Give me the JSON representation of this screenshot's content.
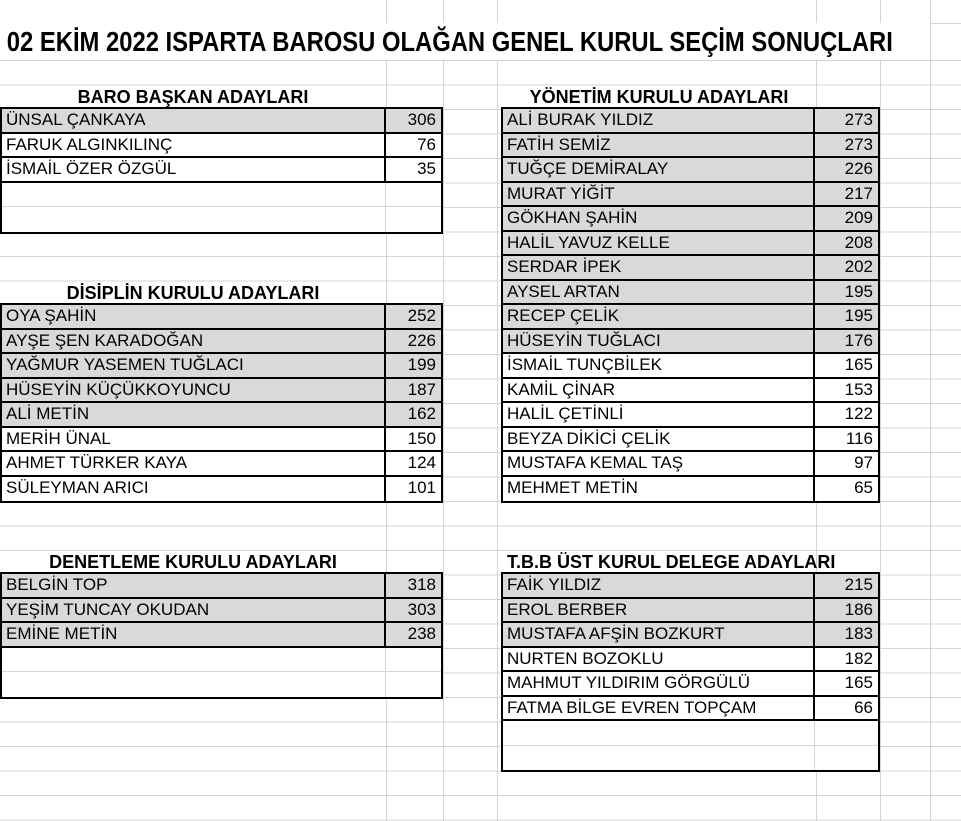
{
  "title": "02 EKİM 2022 ISPARTA BAROSU OLAĞAN GENEL KURUL SEÇİM SONUÇLARI",
  "colors": {
    "highlight_fill": "#d9d9d9",
    "table_border": "#000000",
    "gridline": "#d4d4d4",
    "text": "#000000"
  },
  "sections": [
    {
      "id": "baro-baskan",
      "header": "BARO BAŞKAN ADAYLARI",
      "empty_rows": 2,
      "rows": [
        {
          "name": "ÜNSAL ÇANKAYA",
          "votes": 306,
          "highlighted": true
        },
        {
          "name": "FARUK ALGINKILINÇ",
          "votes": 76,
          "highlighted": false
        },
        {
          "name": "İSMAİL ÖZER ÖZGÜL",
          "votes": 35,
          "highlighted": false
        }
      ]
    },
    {
      "id": "disiplin",
      "header": "DİSİPLİN KURULU ADAYLARI",
      "empty_rows": 0,
      "rows": [
        {
          "name": "OYA ŞAHİN",
          "votes": 252,
          "highlighted": true
        },
        {
          "name": "AYŞE ŞEN KARADOĞAN",
          "votes": 226,
          "highlighted": true
        },
        {
          "name": "YAĞMUR YASEMEN TUĞLACI",
          "votes": 199,
          "highlighted": true
        },
        {
          "name": "HÜSEYİN KÜÇÜKKOYUNCU",
          "votes": 187,
          "highlighted": true
        },
        {
          "name": "ALİ METİN",
          "votes": 162,
          "highlighted": true
        },
        {
          "name": "MERİH ÜNAL",
          "votes": 150,
          "highlighted": false
        },
        {
          "name": "AHMET TÜRKER KAYA",
          "votes": 124,
          "highlighted": false
        },
        {
          "name": "SÜLEYMAN ARICI",
          "votes": 101,
          "highlighted": false
        }
      ]
    },
    {
      "id": "denetleme",
      "header": "DENETLEME KURULU ADAYLARI",
      "empty_rows": 2,
      "rows": [
        {
          "name": "BELGİN TOP",
          "votes": 318,
          "highlighted": true
        },
        {
          "name": "YEŞİM TUNCAY OKUDAN",
          "votes": 303,
          "highlighted": true
        },
        {
          "name": "EMİNE METİN",
          "votes": 238,
          "highlighted": true
        }
      ]
    },
    {
      "id": "yonetim",
      "header": "YÖNETİM KURULU ADAYLARI",
      "empty_rows": 0,
      "rows": [
        {
          "name": "ALİ BURAK YILDIZ",
          "votes": 273,
          "highlighted": true
        },
        {
          "name": "FATİH SEMİZ",
          "votes": 273,
          "highlighted": true
        },
        {
          "name": "TUĞÇE DEMİRALAY",
          "votes": 226,
          "highlighted": true
        },
        {
          "name": "MURAT YİĞİT",
          "votes": 217,
          "highlighted": true
        },
        {
          "name": "GÖKHAN ŞAHİN",
          "votes": 209,
          "highlighted": true
        },
        {
          "name": "HALİL YAVUZ KELLE",
          "votes": 208,
          "highlighted": true
        },
        {
          "name": "SERDAR İPEK",
          "votes": 202,
          "highlighted": true
        },
        {
          "name": "AYSEL ARTAN",
          "votes": 195,
          "highlighted": true
        },
        {
          "name": "RECEP ÇELİK",
          "votes": 195,
          "highlighted": true
        },
        {
          "name": "HÜSEYİN TUĞLACI",
          "votes": 176,
          "highlighted": true
        },
        {
          "name": "İSMAİL TUNÇBİLEK",
          "votes": 165,
          "highlighted": false
        },
        {
          "name": "KAMİL ÇİNAR",
          "votes": 153,
          "highlighted": false
        },
        {
          "name": "HALİL ÇETİNLİ",
          "votes": 122,
          "highlighted": false
        },
        {
          "name": "BEYZA DİKİCİ ÇELİK",
          "votes": 116,
          "highlighted": false
        },
        {
          "name": "MUSTAFA KEMAL TAŞ",
          "votes": 97,
          "highlighted": false
        },
        {
          "name": "MEHMET METİN",
          "votes": 65,
          "highlighted": false
        }
      ]
    },
    {
      "id": "tbb",
      "header": "T.B.B ÜST KURUL DELEGE ADAYLARI",
      "empty_rows": 2,
      "rows": [
        {
          "name": "FAİK YILDIZ",
          "votes": 215,
          "highlighted": true
        },
        {
          "name": "EROL BERBER",
          "votes": 186,
          "highlighted": true
        },
        {
          "name": "MUSTAFA AFŞİN BOZKURT",
          "votes": 183,
          "highlighted": true
        },
        {
          "name": "NURTEN BOZOKLU",
          "votes": 182,
          "highlighted": false
        },
        {
          "name": "MAHMUT YILDIRIM GÖRGÜLÜ",
          "votes": 165,
          "highlighted": false
        },
        {
          "name": "FATMA BİLGE EVREN TOPÇAM",
          "votes": 66,
          "highlighted": false
        }
      ]
    }
  ]
}
